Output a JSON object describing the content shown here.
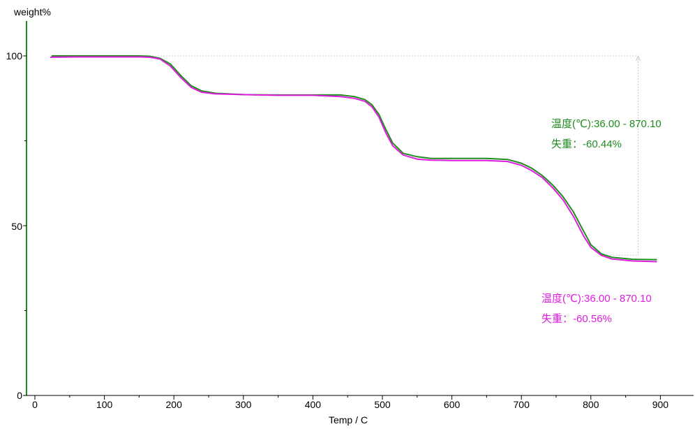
{
  "chart_data": {
    "type": "line",
    "xlabel": "Temp / C",
    "ylabel": "weight%",
    "xlim": [
      -5,
      945
    ],
    "ylim": [
      0,
      108
    ],
    "x_ticks": [
      0,
      100,
      200,
      300,
      400,
      500,
      600,
      700,
      800,
      900
    ],
    "y_ticks": [
      0,
      50,
      100
    ],
    "y_tick_labels": [
      "0",
      "50",
      "100"
    ],
    "x_tick_labels": [
      "0",
      "100",
      "200",
      "300",
      "400",
      "500",
      "600",
      "700",
      "800",
      "900"
    ],
    "grid": false,
    "series": [
      {
        "color": "#1e8c1e",
        "x": [
          24,
          60,
          100,
          150,
          165,
          180,
          195,
          210,
          225,
          240,
          260,
          300,
          350,
          400,
          440,
          460,
          475,
          485,
          495,
          505,
          515,
          530,
          550,
          570,
          600,
          650,
          680,
          700,
          715,
          730,
          745,
          760,
          775,
          790,
          800,
          815,
          830,
          860,
          895
        ],
        "y": [
          100,
          100,
          100,
          100,
          99.9,
          99.3,
          97.6,
          94.2,
          91.2,
          89.7,
          89.0,
          88.6,
          88.5,
          88.5,
          88.5,
          88.0,
          87.1,
          85.6,
          82.8,
          78.3,
          74.3,
          71.3,
          70.3,
          69.8,
          69.8,
          69.8,
          69.5,
          68.4,
          66.9,
          64.8,
          62.0,
          58.5,
          54.0,
          48.2,
          44.4,
          41.7,
          40.7,
          40.1,
          40.0
        ]
      },
      {
        "color": "#dd1ddd",
        "x": [
          22,
          60,
          100,
          150,
          165,
          180,
          195,
          210,
          225,
          240,
          260,
          300,
          350,
          400,
          440,
          460,
          475,
          485,
          495,
          505,
          515,
          530,
          550,
          570,
          600,
          650,
          680,
          700,
          715,
          730,
          745,
          760,
          775,
          790,
          800,
          815,
          830,
          860,
          895
        ],
        "y": [
          99.6,
          99.7,
          99.7,
          99.7,
          99.6,
          99.1,
          97.0,
          93.6,
          90.7,
          89.3,
          88.8,
          88.6,
          88.4,
          88.4,
          88.0,
          87.5,
          86.6,
          85.0,
          82.0,
          77.3,
          73.5,
          70.8,
          69.6,
          69.3,
          69.2,
          69.2,
          68.9,
          67.8,
          66.2,
          64.2,
          61.2,
          57.6,
          52.7,
          46.8,
          43.6,
          41.3,
          40.2,
          39.6,
          39.4
        ]
      }
    ],
    "reference": {
      "x_from": 24,
      "x_to": 868,
      "y_top": 100,
      "y_bottom": 41.3
    },
    "annotations": [
      {
        "line1": "温度(℃):36.00 - 870.10",
        "line2": "失重：-60.44%",
        "color": "#1e8c1e"
      },
      {
        "line1": "温度(℃):36.00 - 870.10",
        "line2": "失重：-60.56%",
        "color": "#dd1ddd"
      }
    ]
  }
}
